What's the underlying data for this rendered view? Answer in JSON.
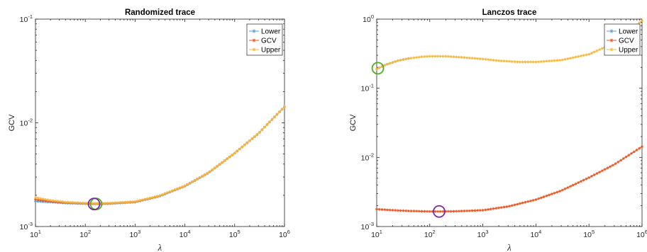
{
  "colors": {
    "lower": "#5a9fd4",
    "gcv": "#e9541f",
    "upper": "#f5b83a",
    "circle_green": "#4caf24",
    "circle_purple": "#7a2a96"
  },
  "chart_data": [
    {
      "type": "line",
      "title": "Randomized trace",
      "xlabel": "λ",
      "ylabel": "GCV",
      "xscale": "log",
      "yscale": "log",
      "xlim": [
        10,
        1000000
      ],
      "ylim": [
        0.001,
        0.1
      ],
      "xticks": [
        10,
        100,
        1000,
        10000,
        100000,
        1000000
      ],
      "xtick_labels": [
        [
          "10",
          "1"
        ],
        [
          "10",
          "2"
        ],
        [
          "10",
          "3"
        ],
        [
          "10",
          "4"
        ],
        [
          "10",
          "5"
        ],
        [
          "10",
          "6"
        ]
      ],
      "yticks": [
        0.001,
        0.01,
        0.1
      ],
      "ytick_labels": [
        [
          "10",
          "-3"
        ],
        [
          "10",
          "-2"
        ],
        [
          "10",
          "-1"
        ]
      ],
      "legend_position": "top-right",
      "series": [
        {
          "name": "Lower",
          "color_key": "lower",
          "x": [
            10,
            20,
            40,
            100,
            160,
            300,
            1000,
            3000,
            10000,
            30000,
            100000,
            300000,
            1000000
          ],
          "y": [
            0.00175,
            0.00172,
            0.00168,
            0.00166,
            0.00165,
            0.00166,
            0.00172,
            0.00195,
            0.00245,
            0.0033,
            0.0051,
            0.0079,
            0.0143
          ]
        },
        {
          "name": "GCV",
          "color_key": "gcv",
          "x": [
            10,
            20,
            40,
            100,
            160,
            300,
            1000,
            3000,
            10000,
            30000,
            100000,
            300000,
            1000000
          ],
          "y": [
            0.00182,
            0.00175,
            0.0017,
            0.00167,
            0.00166,
            0.00167,
            0.00173,
            0.00196,
            0.00246,
            0.00331,
            0.0051,
            0.0079,
            0.0143
          ]
        },
        {
          "name": "Upper",
          "color_key": "upper",
          "x": [
            10,
            20,
            40,
            100,
            160,
            300,
            1000,
            3000,
            10000,
            30000,
            100000,
            300000,
            1000000
          ],
          "y": [
            0.0019,
            0.00179,
            0.00172,
            0.00168,
            0.00167,
            0.00168,
            0.00174,
            0.00197,
            0.00247,
            0.00332,
            0.0051,
            0.0079,
            0.0143
          ]
        }
      ],
      "markers": [
        {
          "color_key": "circle_green",
          "x": 165,
          "y": 0.00165
        },
        {
          "color_key": "circle_purple",
          "x": 150,
          "y": 0.00165
        }
      ]
    },
    {
      "type": "line",
      "title": "Lanczos trace",
      "xlabel": "λ",
      "ylabel": "GCV",
      "xscale": "log",
      "yscale": "log",
      "xlim": [
        10,
        1000000
      ],
      "ylim": [
        0.001,
        1
      ],
      "xticks": [
        10,
        100,
        1000,
        10000,
        100000,
        1000000
      ],
      "xtick_labels": [
        [
          "10",
          "1"
        ],
        [
          "10",
          "2"
        ],
        [
          "10",
          "3"
        ],
        [
          "10",
          "4"
        ],
        [
          "10",
          "5"
        ],
        [
          "10",
          "6"
        ]
      ],
      "yticks": [
        0.001,
        0.01,
        0.1,
        1
      ],
      "ytick_labels": [
        [
          "10",
          "-3"
        ],
        [
          "10",
          "-2"
        ],
        [
          "10",
          "-1"
        ],
        [
          "10",
          "0"
        ]
      ],
      "legend_position": "top-right",
      "series": [
        {
          "name": "Lower",
          "color_key": "lower",
          "x": [
            10,
            15,
            25,
            40
          ],
          "y": [
            0.19,
            0.22,
            0.25,
            0.27
          ]
        },
        {
          "name": "GCV",
          "color_key": "gcv",
          "x": [
            10,
            20,
            40,
            100,
            150,
            300,
            1000,
            3000,
            10000,
            30000,
            100000,
            300000,
            1000000
          ],
          "y": [
            0.00178,
            0.00172,
            0.00168,
            0.00165,
            0.00165,
            0.00166,
            0.00172,
            0.00195,
            0.00245,
            0.0033,
            0.0051,
            0.0079,
            0.0143
          ]
        },
        {
          "name": "Upper",
          "color_key": "upper",
          "x": [
            10,
            15,
            25,
            40,
            70,
            100,
            200,
            400,
            1000,
            2000,
            5000,
            10000,
            30000,
            100000,
            300000,
            1000000
          ],
          "y": [
            0.19,
            0.22,
            0.25,
            0.27,
            0.285,
            0.29,
            0.29,
            0.28,
            0.265,
            0.25,
            0.24,
            0.24,
            0.255,
            0.31,
            0.45,
            0.95
          ]
        }
      ],
      "markers": [
        {
          "color_key": "circle_green",
          "x": 10.5,
          "y": 0.195
        },
        {
          "color_key": "circle_purple",
          "x": 150,
          "y": 0.00165
        }
      ]
    }
  ]
}
